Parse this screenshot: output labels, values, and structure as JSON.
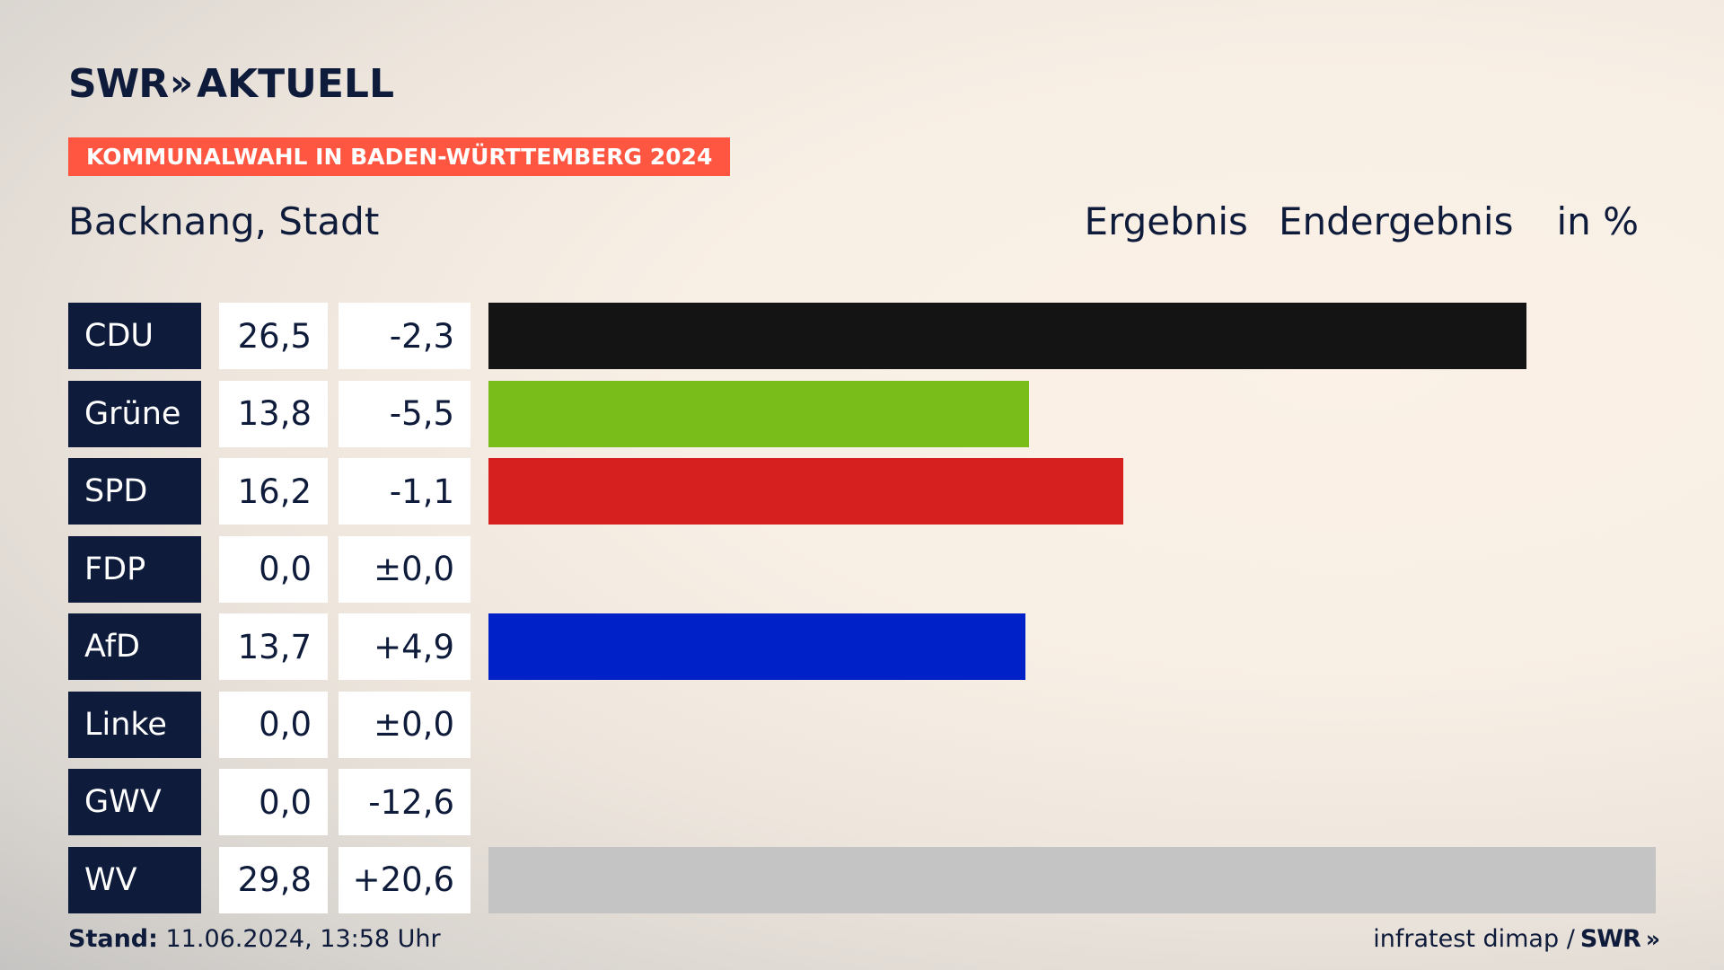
{
  "header": {
    "logo_swr": "SWR",
    "logo_chevrons": "»",
    "logo_aktuell": "AKTUELL",
    "banner": "KOMMUNALWAHL IN BADEN-WÜRTTEMBERG 2024",
    "place": "Backnang, Stadt",
    "col_result": "Ergebnis",
    "col_status": "Endergebnis",
    "col_unit": "in %"
  },
  "colors": {
    "navy": "#0e1b3a",
    "banner": "#ff5641",
    "CDU": "#141414",
    "Grüne": "#79bd1b",
    "SPD": "#d6201f",
    "FDP": "#ffed00",
    "AfD": "#0020c8",
    "Linke": "#be3075",
    "GWV": "#c4c4c4",
    "WV": "#c4c4c4"
  },
  "chart_data": {
    "type": "bar",
    "categories": [
      "CDU",
      "Grüne",
      "SPD",
      "FDP",
      "AfD",
      "Linke",
      "GWV",
      "WV"
    ],
    "values": [
      26.5,
      13.8,
      16.2,
      0.0,
      13.7,
      0.0,
      0.0,
      29.8
    ],
    "value_labels": [
      "26,5",
      "13,8",
      "16,2",
      "0,0",
      "13,7",
      "0,0",
      "0,0",
      "29,8"
    ],
    "diff_labels": [
      "-2,3",
      "-5,5",
      "-1,1",
      "±0,0",
      "+4,9",
      "±0,0",
      "-12,6",
      "+20,6"
    ],
    "diffs": [
      -2.3,
      -5.5,
      -1.1,
      0.0,
      4.9,
      0.0,
      -12.6,
      20.6
    ],
    "xlim": [
      0,
      29.8
    ],
    "title": "Backnang, Stadt",
    "grid": false,
    "legend": "none"
  },
  "footer": {
    "stand_label": "Stand:",
    "stand_value": " 11.06.2024, 13:58 Uhr",
    "source": "infratest dimap /",
    "source_logo": "SWR",
    "source_chevrons": "»"
  }
}
